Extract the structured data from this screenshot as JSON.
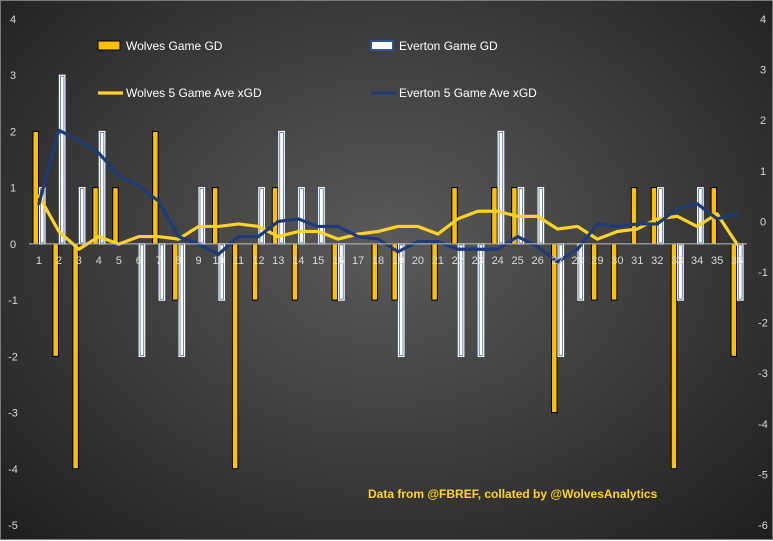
{
  "chart_data": {
    "type": "bar",
    "categories": [
      "1",
      "2",
      "3",
      "4",
      "5",
      "6",
      "7",
      "8",
      "9",
      "10",
      "11",
      "12",
      "13",
      "14",
      "15",
      "16",
      "17",
      "18",
      "19",
      "20",
      "21",
      "22",
      "23",
      "24",
      "25",
      "26",
      "27",
      "28",
      "29",
      "30",
      "31",
      "32",
      "33",
      "34",
      "35",
      "36"
    ],
    "series": [
      {
        "name": "Wolves Game GD",
        "kind": "bar",
        "axis": "left",
        "color": "#ffc000",
        "values": [
          2,
          -2,
          -4,
          1,
          1,
          0,
          2,
          -1,
          0,
          1,
          -4,
          -1,
          1,
          -1,
          0,
          -1,
          0,
          -1,
          -1,
          0,
          -1,
          1,
          0,
          1,
          1,
          0,
          -3,
          0,
          -1,
          -1,
          1,
          1,
          -4,
          0,
          1,
          -2
        ]
      },
      {
        "name": "Everton Game GD",
        "kind": "bar",
        "axis": "left",
        "color": "#2f5597",
        "values": [
          1,
          3,
          1,
          2,
          0,
          -2,
          -1,
          -2,
          1,
          -1,
          0,
          1,
          2,
          1,
          1,
          -1,
          0,
          0,
          -2,
          0,
          0,
          -2,
          -2,
          2,
          1,
          1,
          -2,
          -1,
          0,
          0,
          0,
          1,
          -1,
          1,
          0,
          -1
        ]
      },
      {
        "name": "Wolves 5 Game Ave xGD",
        "kind": "line",
        "axis": "right",
        "color": "#ffd22a",
        "values": [
          0.5,
          -0.2,
          -0.55,
          -0.3,
          -0.45,
          -0.3,
          -0.3,
          -0.35,
          -0.1,
          -0.1,
          -0.05,
          -0.1,
          -0.3,
          -0.2,
          -0.2,
          -0.35,
          -0.25,
          -0.2,
          -0.1,
          -0.1,
          -0.25,
          0.05,
          0.2,
          0.2,
          0.1,
          0.1,
          -0.15,
          -0.1,
          -0.35,
          -0.2,
          -0.15,
          0.05,
          0.1,
          -0.1,
          0.15,
          -0.45
        ]
      },
      {
        "name": "Everton 5 Game Ave xGD",
        "kind": "line",
        "axis": "right",
        "color": "#1f3a78",
        "values": [
          0.35,
          1.8,
          1.6,
          1.35,
          0.9,
          0.7,
          0.4,
          -0.3,
          -0.45,
          -0.65,
          -0.3,
          -0.3,
          0,
          0.05,
          -0.1,
          -0.1,
          -0.3,
          -0.35,
          -0.6,
          -0.4,
          -0.4,
          -0.55,
          -0.55,
          -0.55,
          -0.3,
          -0.5,
          -0.8,
          -0.55,
          -0.05,
          -0.1,
          -0.05,
          -0.05,
          0.25,
          0.35,
          0.05,
          0.15
        ]
      }
    ],
    "left_axis": {
      "ylim": [
        -5,
        4
      ],
      "ticks": [
        -5,
        -4,
        -3,
        -2,
        -1,
        0,
        1,
        2,
        3,
        4
      ]
    },
    "right_axis": {
      "ylim": [
        -6,
        4
      ],
      "ticks": [
        -6,
        -5,
        -4,
        -3,
        -2,
        -1,
        0,
        1,
        2,
        3,
        4
      ]
    },
    "legend": "top",
    "annotation": "Data from @FBREF, collated by @WolvesAnalytics",
    "grid": false
  }
}
